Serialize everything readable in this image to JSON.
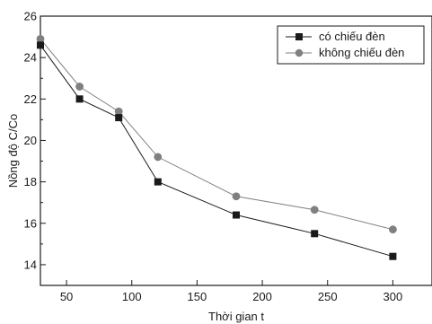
{
  "chart_data": {
    "type": "line",
    "title": "",
    "xlabel": "Thời gian t",
    "ylabel": "Nồng độ C/Co",
    "xlim": [
      30,
      330
    ],
    "ylim": [
      13,
      26
    ],
    "xticks": [
      50,
      100,
      150,
      200,
      250,
      300
    ],
    "yticks": [
      14,
      16,
      18,
      20,
      22,
      24,
      26
    ],
    "grid": false,
    "legend_position": "top-right",
    "x": [
      30,
      60,
      90,
      120,
      180,
      240,
      300
    ],
    "series": [
      {
        "name": "có chiếu đèn",
        "values": [
          24.6,
          22.0,
          21.1,
          18.0,
          16.4,
          15.5,
          14.4
        ],
        "color": "#1a1a1a",
        "marker": "square"
      },
      {
        "name": "không chiếu đèn",
        "values": [
          24.9,
          22.6,
          21.4,
          19.2,
          17.3,
          16.65,
          15.7
        ],
        "color": "#808080",
        "marker": "circle"
      }
    ]
  }
}
